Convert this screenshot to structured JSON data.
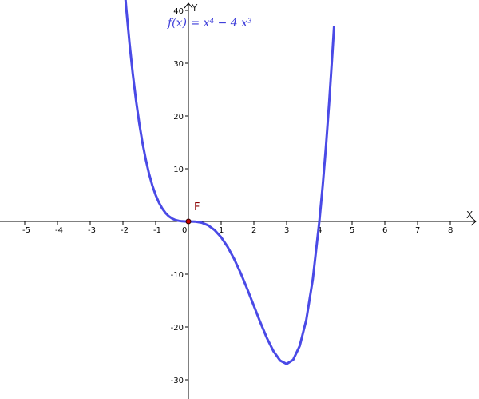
{
  "chart_data": {
    "type": "line",
    "title": "",
    "function_label": "f(x) = x⁴ − 4 x³",
    "xlabel": "X",
    "ylabel": "Y",
    "xlim": [
      -5.6,
      8.9
    ],
    "ylim": [
      -33.5,
      41
    ],
    "x_ticks": [
      -5,
      -4,
      -3,
      -2,
      -1,
      0,
      1,
      2,
      3,
      4,
      5,
      6,
      7,
      8
    ],
    "x_tick_labels": [
      "-5",
      "-4",
      "-3",
      "-2",
      "-1",
      "0",
      "1",
      "2",
      "3",
      "4",
      "5",
      "6",
      "7",
      "8"
    ],
    "y_ticks": [
      -30,
      -20,
      -10,
      10,
      20,
      30,
      40
    ],
    "y_tick_labels": [
      "-30",
      "-20",
      "-10",
      "10",
      "20",
      "30",
      "40"
    ],
    "grid": false,
    "series": [
      {
        "color": "#4a4ae6",
        "x": [
          -2.0,
          -1.9,
          -1.8,
          -1.7,
          -1.6,
          -1.5,
          -1.4,
          -1.3,
          -1.2,
          -1.1,
          -1.0,
          -0.9,
          -0.8,
          -0.7,
          -0.6,
          -0.5,
          -0.4,
          -0.3,
          -0.2,
          -0.1,
          0.0,
          0.2,
          0.4,
          0.6,
          0.8,
          1.0,
          1.2,
          1.4,
          1.6,
          1.8,
          2.0,
          2.2,
          2.4,
          2.6,
          2.8,
          3.0,
          3.2,
          3.4,
          3.6,
          3.8,
          4.0,
          4.1,
          4.2,
          4.3,
          4.4,
          4.45
        ],
        "y": [
          48.0,
          40.47,
          33.83,
          28.0,
          22.94,
          18.56,
          14.82,
          11.66,
          8.99,
          6.79,
          5.0,
          3.57,
          2.46,
          1.61,
          0.99,
          0.56,
          0.28,
          0.12,
          0.03,
          0.004,
          0.0,
          -0.03,
          -0.23,
          -0.73,
          -1.64,
          -3.0,
          -4.84,
          -7.13,
          -9.83,
          -12.83,
          -16.0,
          -19.16,
          -22.12,
          -24.61,
          -26.35,
          -27.0,
          -26.21,
          -23.59,
          -18.66,
          -10.97,
          0.0,
          6.61,
          14.11,
          22.56,
          32.01,
          37.1
        ]
      }
    ],
    "points": [
      {
        "label": "F",
        "x": 0,
        "y": 0,
        "color": "#cc0000"
      }
    ]
  }
}
